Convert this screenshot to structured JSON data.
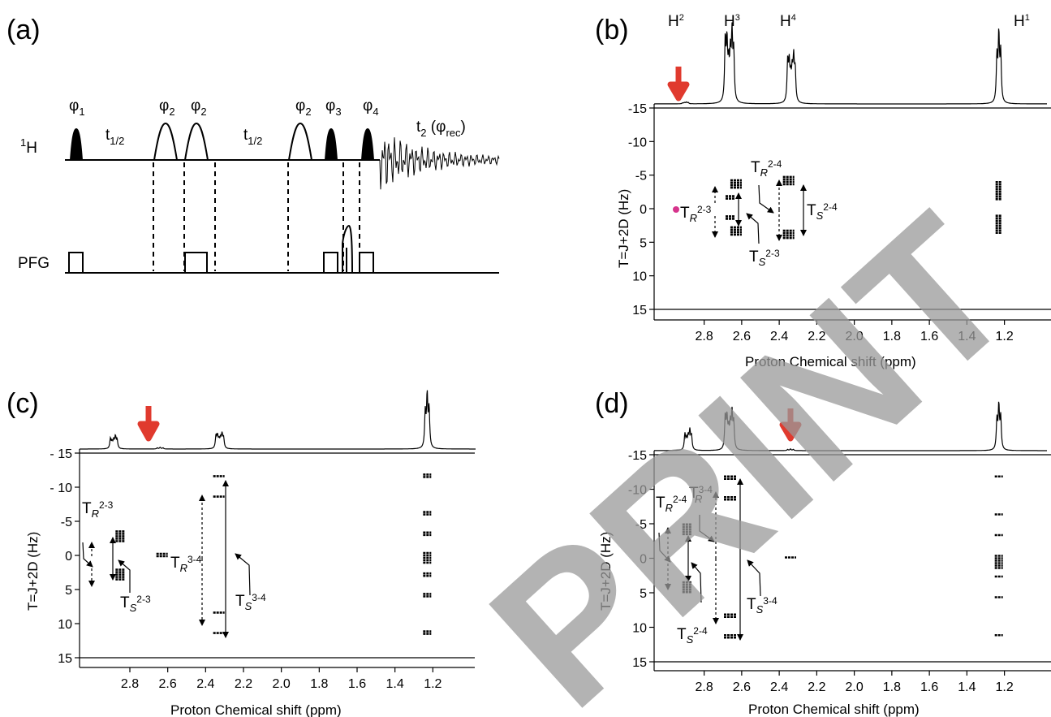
{
  "panel_labels": {
    "a": "(a)",
    "b": "(b)",
    "c": "(c)",
    "d": "(d)"
  },
  "pulse": {
    "h_channel": "1H",
    "pfg_channel": "PFG",
    "phi1": "φ1",
    "phi2": "φ2",
    "phi3": "φ3",
    "phi4": "φ4",
    "t_half": "t1/2",
    "acq": "t2 (φrec)"
  },
  "axis": {
    "x_label": "Proton Chemical shift (ppm)",
    "y_label": "T=J+2D (Hz)",
    "x_ticks": [
      "2.8",
      "2.6",
      "2.4",
      "2.2",
      "2.0",
      "1.8",
      "1.6",
      "1.4",
      "1.2"
    ],
    "y_ticks_bd": [
      "-15",
      "-10",
      "-5",
      "0",
      "5",
      "10",
      "15"
    ],
    "y_ticks_c": [
      "- 15",
      "- 10",
      "-5",
      "0",
      "5",
      "10",
      "15"
    ]
  },
  "peaks_b": {
    "h2": "H2",
    "h3": "H3",
    "h4": "H4",
    "h1": "H1"
  },
  "annot": {
    "tr23": "TR2-3",
    "ts23": "TS2-3",
    "tr24": "TR2-4",
    "ts24": "TS2-4",
    "tr34": "TR3-4",
    "ts34": "TS3-4"
  },
  "watermark": "PREPRINT",
  "colors": {
    "arrow": "#e03a2e",
    "marker": "#d6348c"
  },
  "chart_data": [
    {
      "type": "spectrum2d",
      "panel": "(b)",
      "xlabel": "Proton Chemical shift (ppm)",
      "ylabel": "T=J+2D (Hz)",
      "xlim": [
        2.98,
        1.06
      ],
      "ylim": [
        -15,
        15
      ],
      "peaks_1d": [
        {
          "label": "H2",
          "ppm": 2.9
        },
        {
          "label": "H3",
          "ppm": 2.66
        },
        {
          "label": "H4",
          "ppm": 2.34
        },
        {
          "label": "H1",
          "ppm": 1.23
        }
      ],
      "highlight_ppm": 2.9
    },
    {
      "type": "spectrum2d",
      "panel": "(c)",
      "xlabel": "Proton Chemical shift (ppm)",
      "ylabel": "T=J+2D (Hz)",
      "xlim": [
        2.98,
        1.06
      ],
      "ylim": [
        -15,
        15
      ],
      "highlight_ppm": 2.64
    },
    {
      "type": "spectrum2d",
      "panel": "(d)",
      "xlabel": "Proton Chemical shift (ppm)",
      "ylabel": "T=J+2D (Hz)",
      "xlim": [
        2.98,
        1.06
      ],
      "ylim": [
        -15,
        15
      ],
      "highlight_ppm": 2.34
    }
  ]
}
